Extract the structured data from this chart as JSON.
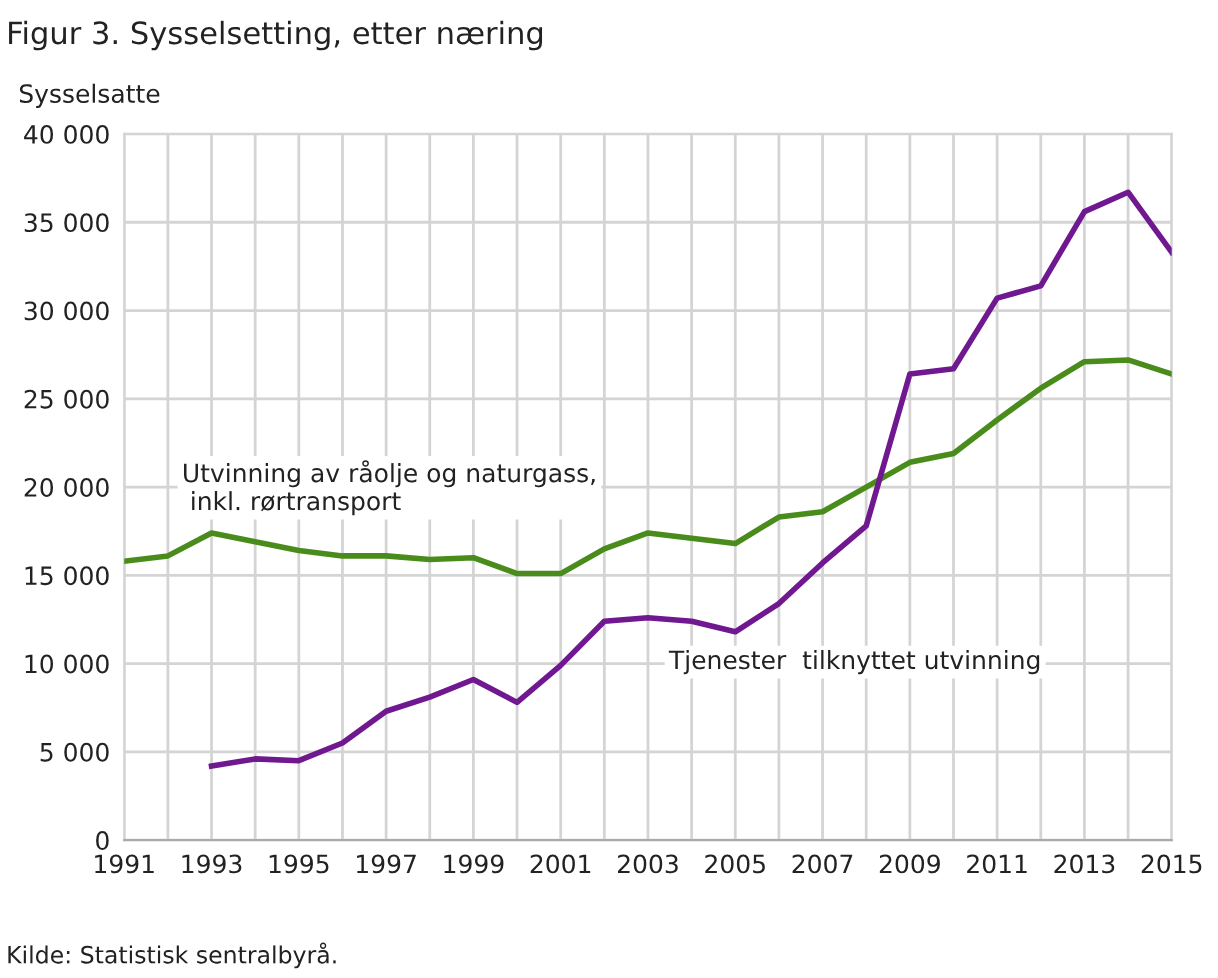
{
  "chart_data": {
    "type": "line",
    "title": "Figur 3. Sysselsetting, etter næring",
    "ylabel": "Sysselsatte",
    "x": [
      1991,
      1992,
      1993,
      1994,
      1995,
      1996,
      1997,
      1998,
      1999,
      2000,
      2001,
      2002,
      2003,
      2004,
      2005,
      2006,
      2007,
      2008,
      2009,
      2010,
      2011,
      2012,
      2013,
      2014,
      2015
    ],
    "series": [
      {
        "name": "Utvinning av råolje og naturgass,\n inkl. rørtransport",
        "color": "#4a8c1c",
        "values": [
          15800,
          16100,
          17400,
          16900,
          16400,
          16100,
          16100,
          15900,
          16000,
          15100,
          15100,
          16500,
          17400,
          17100,
          16800,
          18300,
          18600,
          20000,
          21400,
          21900,
          23800,
          25600,
          27100,
          27200,
          26400
        ]
      },
      {
        "name": "Tjenester  tilknyttet utvinning",
        "color": "#6f1890",
        "values": [
          null,
          null,
          4200,
          4600,
          4500,
          5500,
          7300,
          8100,
          9100,
          7800,
          9900,
          12400,
          12600,
          12400,
          11800,
          13400,
          15700,
          17800,
          26400,
          26700,
          30700,
          31400,
          35600,
          36700,
          33300
        ]
      }
    ],
    "xlim": [
      1991,
      2015
    ],
    "xticks": [
      1991,
      {
        "value": 1992,
        "label": null
      },
      1993,
      {
        "value": 1994,
        "label": null
      },
      1995,
      {
        "value": 1996,
        "label": null
      },
      1997,
      {
        "value": 1998,
        "label": null
      },
      1999,
      {
        "value": 2000,
        "label": null
      },
      2001,
      {
        "value": 2002,
        "label": null
      },
      2003,
      {
        "value": 2004,
        "label": null
      },
      2005,
      {
        "value": 2006,
        "label": null
      },
      2007,
      {
        "value": 2008,
        "label": null
      },
      2009,
      {
        "value": 2010,
        "label": null
      },
      2011,
      {
        "value": 2012,
        "label": null
      },
      2013,
      {
        "value": 2014,
        "label": null
      },
      2015
    ],
    "ylim": [
      0,
      40000
    ],
    "yticks": [
      0,
      {
        "value": 5000,
        "label": "5 000"
      },
      {
        "value": 10000,
        "label": "10 000"
      },
      {
        "value": 15000,
        "label": "15 000"
      },
      {
        "value": 20000,
        "label": "20 000"
      },
      {
        "value": 25000,
        "label": "25 000"
      },
      {
        "value": 30000,
        "label": "30 000"
      },
      {
        "value": 35000,
        "label": "35 000"
      },
      {
        "value": 40000,
        "label": "40 000"
      }
    ],
    "grid": true,
    "legend": false,
    "marker": "none",
    "line_style": "solid",
    "annotations": [
      "Kilde: Statistisk sentralbyrå."
    ]
  }
}
